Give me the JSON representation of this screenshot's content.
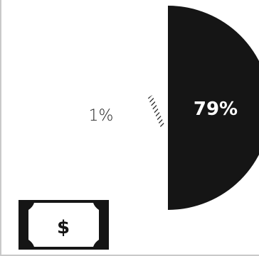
{
  "colors": {
    "ink": "#151515",
    "background": "#ffffff",
    "label_on_dark": "#ffffff",
    "label_on_light": "#1c1c1c"
  },
  "icon": {
    "name": "dollar-bill-icon",
    "symbol": "$"
  },
  "chart_data": {
    "type": "pie",
    "categories": [
      "",
      ""
    ],
    "values": [
      79,
      1
    ],
    "value_labels": [
      "79%",
      "1%"
    ],
    "slice_styles": [
      "solid",
      "hatched"
    ],
    "title": "",
    "xlabel": "",
    "ylabel": "",
    "legend": "none",
    "grid": false
  }
}
